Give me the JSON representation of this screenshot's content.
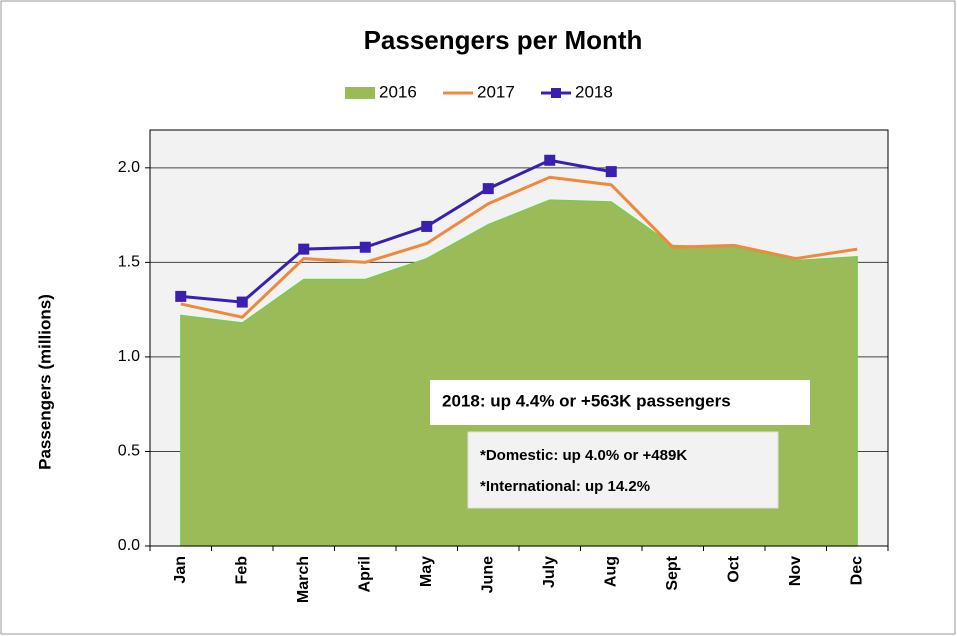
{
  "chart_data": {
    "type": "area-line",
    "title": "Passengers per Month",
    "y_label": "Passengers (millions)",
    "categories": [
      "Jan",
      "Feb",
      "March",
      "April",
      "May",
      "June",
      "July",
      "Aug",
      "Sept",
      "Oct",
      "Nov",
      "Dec"
    ],
    "series": [
      {
        "name": "2016",
        "color": "#9bbb59",
        "values": [
          1.22,
          1.18,
          1.41,
          1.41,
          1.52,
          1.7,
          1.83,
          1.82,
          1.59,
          1.58,
          1.51,
          1.53
        ]
      },
      {
        "name": "2017",
        "color": "#f0883e",
        "values": [
          1.28,
          1.21,
          1.52,
          1.5,
          1.6,
          1.81,
          1.95,
          1.91,
          1.58,
          1.59,
          1.52,
          1.57
        ]
      },
      {
        "name": "2018",
        "color": "#3b1fb0",
        "values": [
          1.32,
          1.29,
          1.57,
          1.58,
          1.69,
          1.89,
          2.04,
          1.98,
          null,
          null,
          null,
          null
        ]
      }
    ],
    "ylim": [
      0,
      2.2
    ],
    "yticks": [
      {
        "value": 0,
        "label": "0.0"
      },
      0.5,
      {
        "value": 1,
        "label": "1.0"
      },
      1.5,
      {
        "value": 2,
        "label": "2.0"
      }
    ],
    "grid": true,
    "legend": "top",
    "annotations": [
      "2018: up 4.4% or +563K passengers",
      "*Domestic: up 4.0% or +489K",
      "*International: up 14.2%"
    ]
  }
}
